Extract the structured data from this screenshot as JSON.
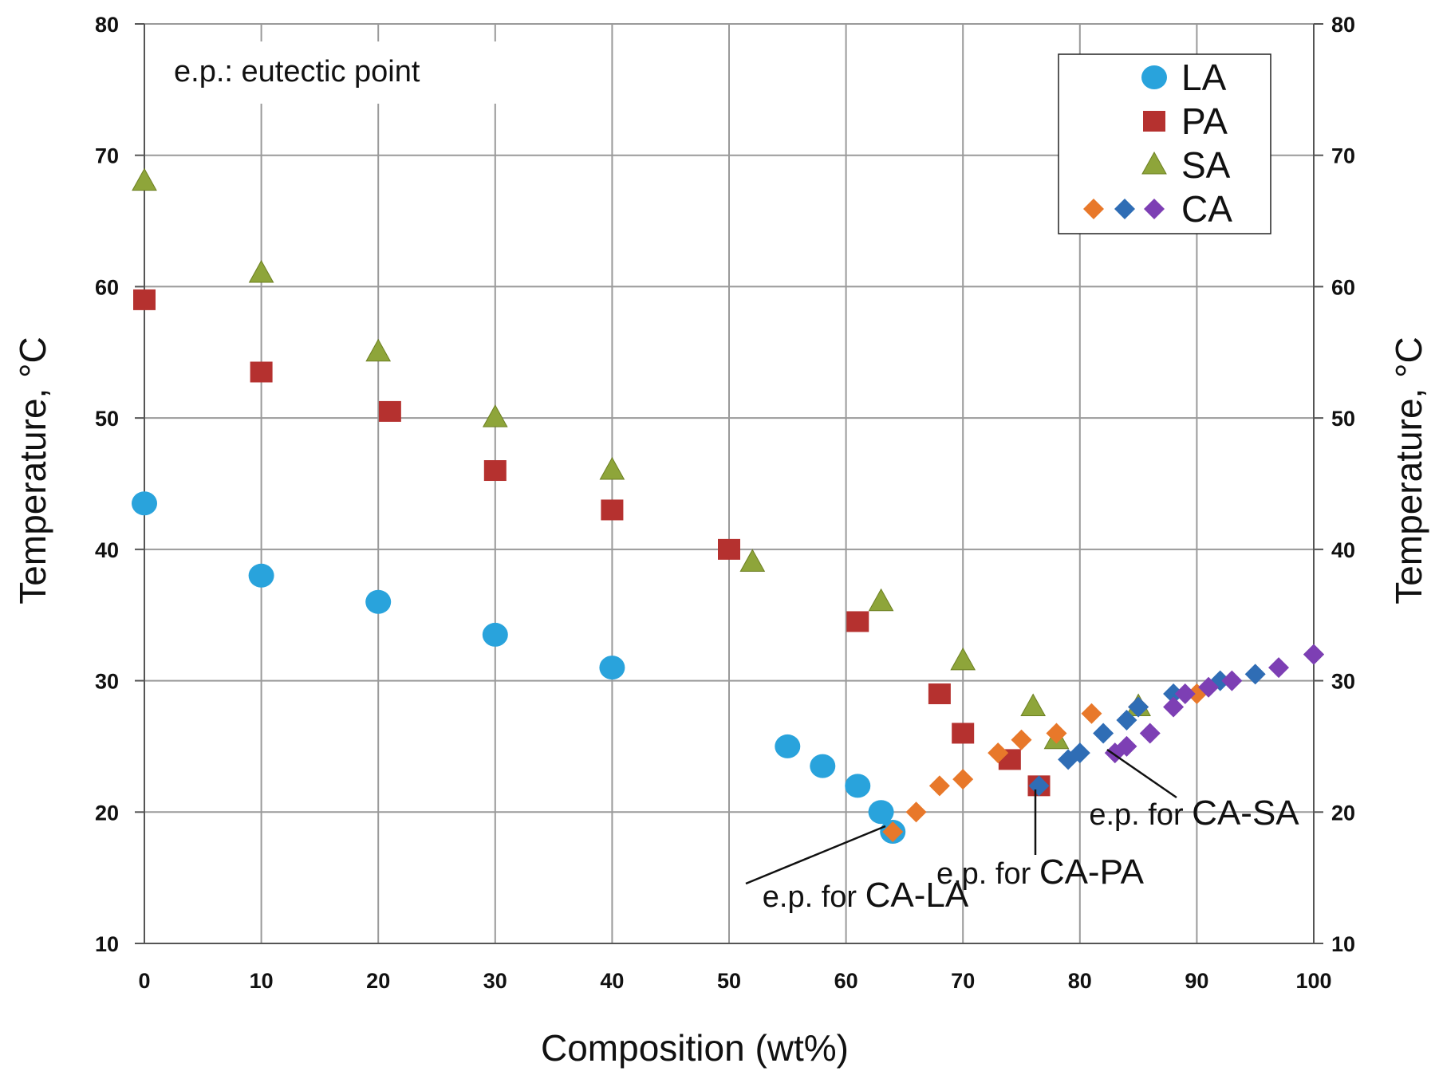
{
  "chart_data": {
    "type": "scatter",
    "xlabel": "Composition (wt%)",
    "ylabel": "Temperature, °C",
    "ylabel_right": "Temperature, °C",
    "xlim": [
      0,
      100
    ],
    "ylim": [
      10,
      80
    ],
    "x_ticks": [
      "0",
      "10",
      "20",
      "30",
      "40",
      "50",
      "60",
      "70",
      "80",
      "90",
      "100"
    ],
    "y_ticks": [
      "10",
      "20",
      "30",
      "40",
      "50",
      "60",
      "70",
      "80"
    ],
    "grid": true,
    "legend_position": "top-right",
    "note": "e.p.: eutectic point",
    "colors": {
      "LA": "#29a3dc",
      "PA": "#b5312f",
      "SA": "#8ea53a",
      "CA_LA": "#e8782a",
      "CA_PA": "#2f6db5",
      "CA_SA": "#7d3fb4"
    },
    "series": [
      {
        "name": "LA",
        "marker": "circle",
        "x": [
          0,
          10,
          20,
          30,
          40,
          55,
          58,
          61,
          63,
          64
        ],
        "y": [
          43.5,
          38,
          36,
          33.5,
          31,
          25,
          23.5,
          22,
          20,
          18.5
        ]
      },
      {
        "name": "PA",
        "marker": "square",
        "x": [
          0,
          10,
          21,
          30,
          40,
          50,
          61,
          68,
          70,
          74,
          76.5
        ],
        "y": [
          59,
          53.5,
          50.5,
          46,
          43,
          40,
          34.5,
          29,
          26,
          24,
          22
        ]
      },
      {
        "name": "SA",
        "marker": "triangle",
        "x": [
          0,
          10,
          20,
          30,
          40,
          52,
          63,
          70,
          76,
          78,
          85
        ],
        "y": [
          68,
          61,
          55,
          50,
          46,
          39,
          36,
          31.5,
          28,
          25.5,
          28
        ]
      },
      {
        "name": "CA",
        "marker": "diamond",
        "color_key": "CA_LA",
        "x": [
          64,
          66,
          68,
          70,
          73,
          75,
          78,
          81,
          85,
          90,
          100
        ],
        "y": [
          18.5,
          20,
          22,
          22.5,
          24.5,
          25.5,
          26,
          27.5,
          28,
          29,
          32
        ]
      },
      {
        "name": "CA",
        "marker": "diamond",
        "color_key": "CA_PA",
        "x": [
          76.5,
          79,
          80,
          82,
          84,
          85,
          88,
          92,
          95,
          100
        ],
        "y": [
          22,
          24,
          24.5,
          26,
          27,
          28,
          29,
          30,
          30.5,
          32
        ]
      },
      {
        "name": "CA",
        "marker": "diamond",
        "color_key": "CA_SA",
        "x": [
          83,
          84,
          86,
          88,
          89,
          91,
          93,
          97,
          100
        ],
        "y": [
          24.5,
          25,
          26,
          28,
          29,
          29.5,
          30,
          31,
          32
        ]
      }
    ],
    "legend_entries": [
      "LA",
      "PA",
      "SA",
      "CA"
    ],
    "annotations": [
      {
        "prefix": "e.p. for ",
        "label": "CA-LA",
        "x": 64,
        "y": 18.5
      },
      {
        "prefix": "e.p. for ",
        "label": "CA-PA",
        "x": 76.5,
        "y": 22
      },
      {
        "prefix": "e.p. for ",
        "label": "CA-SA",
        "x": 83,
        "y": 24.5
      }
    ]
  }
}
